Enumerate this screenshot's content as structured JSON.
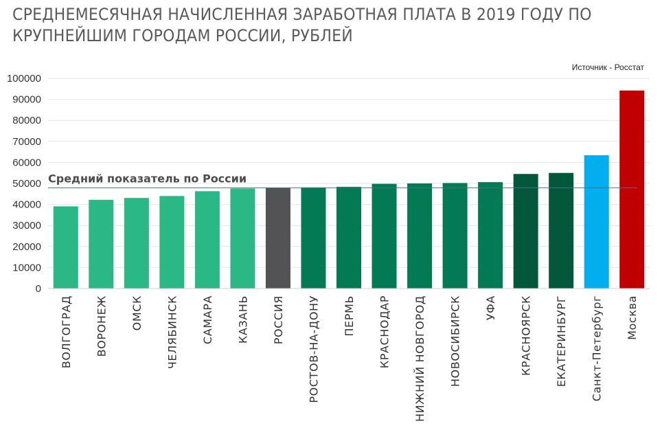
{
  "chart_data": {
    "type": "bar",
    "title": "СРЕДНЕМЕСЯЧНАЯ НАЧИСЛЕННАЯ ЗАРАБОТНАЯ ПЛАТА В 2019 ГОДУ ПО\nКРУПНЕЙШИМ ГОРОДАМ РОССИИ, РУБЛЕЙ",
    "source": "Источник - Росстат",
    "reference_line": {
      "label": "Средний показатель по России",
      "value": 47900,
      "color": "#4a6f8a"
    },
    "ylim": [
      0,
      100000
    ],
    "yticks": [
      0,
      10000,
      20000,
      30000,
      40000,
      50000,
      60000,
      70000,
      80000,
      90000,
      100000
    ],
    "grid": true,
    "categories": [
      "ВОЛГОГРАД",
      "ВОРОНЕЖ",
      "ОМСК",
      "ЧЕЛЯБИНСК",
      "САМАРА",
      "КАЗАНЬ",
      "РОССИЯ",
      "РОСТОВ-НА-ДОНУ",
      "ПЕРМЬ",
      "КРАСНОДАР",
      "НИЖНИЙ НОВГОРОД",
      "НОВОСИБИРСК",
      "УФА",
      "КРАСНОЯРСК",
      "ЕКАТЕРИНБУРГ",
      "Санкт-Петербург",
      "Москва"
    ],
    "values": [
      39100,
      42200,
      43100,
      44000,
      46300,
      47600,
      47900,
      48100,
      48400,
      49800,
      50000,
      50200,
      50600,
      54500,
      55000,
      63400,
      94200
    ],
    "colors": [
      "#2ab886",
      "#2ab886",
      "#2ab886",
      "#2ab886",
      "#2ab886",
      "#2ab886",
      "#535356",
      "#037a54",
      "#037a54",
      "#037a54",
      "#037a54",
      "#037a54",
      "#037a54",
      "#03573b",
      "#03573b",
      "#03aeef",
      "#c00000"
    ]
  }
}
